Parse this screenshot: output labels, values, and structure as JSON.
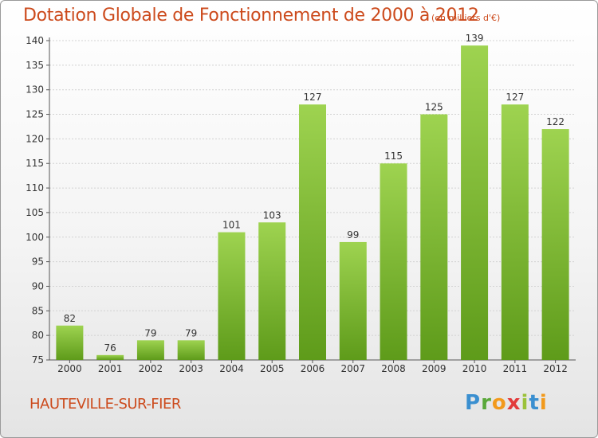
{
  "title": "Dotation Globale de Fonctionnement de 2000 à 2012",
  "subtitle": "(en milliers d'€)",
  "place": "HAUTEVILLE-SUR-FIER",
  "logo": {
    "text": "Proxiti",
    "letters": [
      "P",
      "r",
      "o",
      "x",
      "i",
      "t",
      "i"
    ],
    "colors": [
      "#3a8fd0",
      "#5aa83a",
      "#f29a1c",
      "#e23a3a",
      "#9bc23a",
      "#3a8fd0",
      "#f29a1c"
    ]
  },
  "colors": {
    "title": "#cc4a1c",
    "bar_light": "#9ed350",
    "bar_dark": "#5e9b1a"
  },
  "chart_data": {
    "type": "bar",
    "categories": [
      "2000",
      "2001",
      "2002",
      "2003",
      "2004",
      "2005",
      "2006",
      "2007",
      "2008",
      "2009",
      "2010",
      "2011",
      "2012"
    ],
    "values": [
      82,
      76,
      79,
      79,
      101,
      103,
      127,
      99,
      115,
      125,
      139,
      127,
      122
    ],
    "ylim": [
      75,
      140
    ],
    "yticks": [
      75,
      80,
      85,
      90,
      95,
      100,
      105,
      110,
      115,
      120,
      125,
      130,
      135,
      140
    ],
    "grid": true,
    "title": "Dotation Globale de Fonctionnement de 2000 à 2012",
    "subtitle": "(en milliers d'€)",
    "xlabel": "",
    "ylabel": ""
  }
}
